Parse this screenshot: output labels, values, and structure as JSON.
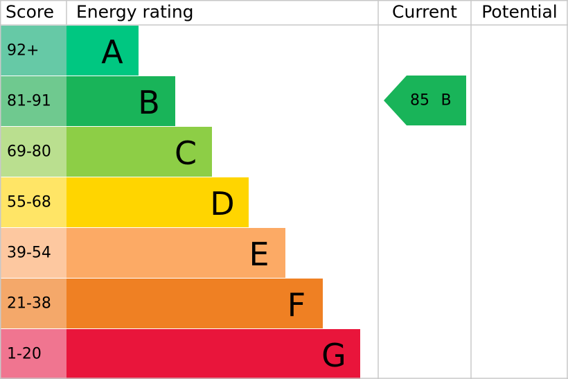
{
  "header": {
    "score": "Score",
    "rating": "Energy rating",
    "current": "Current",
    "potential": "Potential"
  },
  "rows": [
    {
      "score": "92+",
      "rating": "A"
    },
    {
      "score": "81-91",
      "rating": "B"
    },
    {
      "score": "69-80",
      "rating": "C"
    },
    {
      "score": "55-68",
      "rating": "D"
    },
    {
      "score": "39-54",
      "rating": "E"
    },
    {
      "score": "21-38",
      "rating": "F"
    },
    {
      "score": "1-20",
      "rating": "G"
    }
  ],
  "current": {
    "score": 85,
    "rating": "B"
  }
}
